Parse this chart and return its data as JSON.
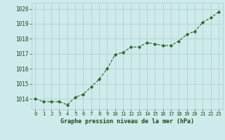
{
  "x": [
    0,
    1,
    2,
    3,
    4,
    5,
    6,
    7,
    8,
    9,
    10,
    11,
    12,
    13,
    14,
    15,
    16,
    17,
    18,
    19,
    20,
    21,
    22,
    23
  ],
  "y": [
    1014.0,
    1013.8,
    1013.8,
    1013.8,
    1013.6,
    1014.1,
    1014.3,
    1014.8,
    1015.3,
    1016.0,
    1016.95,
    1017.1,
    1017.45,
    1017.45,
    1017.75,
    1017.65,
    1017.55,
    1017.55,
    1017.85,
    1018.3,
    1018.5,
    1019.1,
    1019.4,
    1019.8
  ],
  "line_color": "#2d6a2d",
  "marker": "D",
  "marker_size": 2.2,
  "bg_color": "#ceeaea",
  "grid_color": "#aacece",
  "xlabel": "Graphe pression niveau de la mer (hPa)",
  "xlabel_color": "#1a4a1a",
  "tick_color": "#1a4a1a",
  "ylim": [
    1013.3,
    1020.4
  ],
  "yticks": [
    1014,
    1015,
    1016,
    1017,
    1018,
    1019,
    1020
  ],
  "xlim": [
    -0.5,
    23.5
  ],
  "xticks": [
    0,
    1,
    2,
    3,
    4,
    5,
    6,
    7,
    8,
    9,
    10,
    11,
    12,
    13,
    14,
    15,
    16,
    17,
    18,
    19,
    20,
    21,
    22,
    23
  ]
}
